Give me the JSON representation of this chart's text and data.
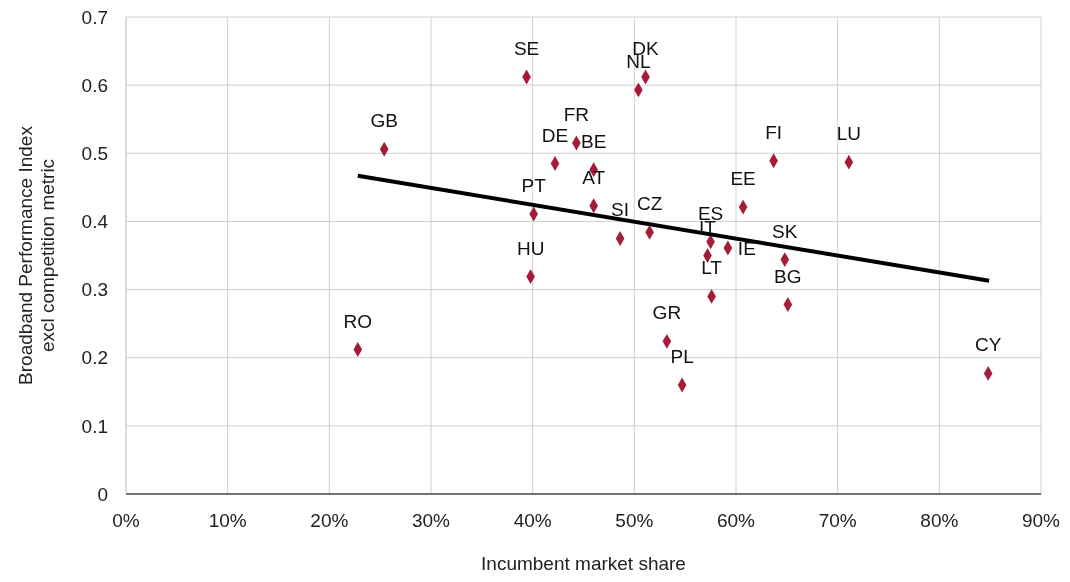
{
  "chart_data": {
    "type": "scatter",
    "xlabel": "Incumbent market share",
    "ylabel": "Broadband Performance Index excl competition metric",
    "xlim": [
      0,
      90
    ],
    "xticks": [
      {
        "value": 0,
        "label": "0%"
      },
      {
        "value": 10,
        "label": "10%"
      },
      {
        "value": 20,
        "label": "20%"
      },
      {
        "value": 30,
        "label": "30%"
      },
      {
        "value": 40,
        "label": "40%"
      },
      {
        "value": 50,
        "label": "50%"
      },
      {
        "value": 60,
        "label": "60%"
      },
      {
        "value": 70,
        "label": "70%"
      },
      {
        "value": 80,
        "label": "80%"
      },
      {
        "value": 90,
        "label": "90%"
      }
    ],
    "ylim": [
      0,
      0.7
    ],
    "yticks": [
      0,
      0.1,
      0.2,
      0.3,
      0.4,
      0.5,
      0.6,
      0.7
    ],
    "grid": true,
    "marker": "diamond",
    "series": [
      {
        "color": "#a51c36",
        "x": [
          39.4,
          51.1,
          50.4,
          25.4,
          44.3,
          42.2,
          46.0,
          46.0,
          40.1,
          48.6,
          51.5,
          39.8,
          57.5,
          57.2,
          59.2,
          57.6,
          60.7,
          53.2,
          54.7,
          64.8,
          65.1,
          63.7,
          71.1,
          84.8,
          22.8
        ],
        "values": [
          0.612,
          0.612,
          0.593,
          0.506,
          0.515,
          0.485,
          0.476,
          0.423,
          0.411,
          0.375,
          0.384,
          0.319,
          0.37,
          0.35,
          0.361,
          0.29,
          0.421,
          0.224,
          0.16,
          0.344,
          0.278,
          0.489,
          0.487,
          0.177,
          0.212
        ]
      },
      {
        "type": "line",
        "color": "#000000",
        "marker": "none",
        "x": [
          22.8,
          84.9
        ],
        "values": [
          0.467,
          0.313
        ]
      }
    ],
    "annotations": [
      {
        "text": "SE",
        "x": 39.4,
        "y": 0.612
      },
      {
        "text": "DK",
        "x": 51.1,
        "y": 0.612
      },
      {
        "text": "NL",
        "x": 50.4,
        "y": 0.593
      },
      {
        "text": "GB",
        "x": 25.4,
        "y": 0.506
      },
      {
        "text": "FR",
        "x": 44.3,
        "y": 0.515
      },
      {
        "text": "DE",
        "x": 42.2,
        "y": 0.485
      },
      {
        "text": "BE",
        "x": 46.0,
        "y": 0.476
      },
      {
        "text": "AT",
        "x": 46.0,
        "y": 0.423
      },
      {
        "text": "PT",
        "x": 40.1,
        "y": 0.411
      },
      {
        "text": "SI",
        "x": 48.6,
        "y": 0.375
      },
      {
        "text": "CZ",
        "x": 51.5,
        "y": 0.384
      },
      {
        "text": "HU",
        "x": 39.8,
        "y": 0.319
      },
      {
        "text": "ES",
        "x": 57.5,
        "y": 0.37
      },
      {
        "text": "IT",
        "x": 57.2,
        "y": 0.35
      },
      {
        "text": "IE",
        "x": 59.2,
        "y": 0.361
      },
      {
        "text": "LT",
        "x": 57.6,
        "y": 0.29
      },
      {
        "text": "EE",
        "x": 60.7,
        "y": 0.421
      },
      {
        "text": "GR",
        "x": 53.2,
        "y": 0.224
      },
      {
        "text": "PL",
        "x": 54.7,
        "y": 0.16
      },
      {
        "text": "SK",
        "x": 64.8,
        "y": 0.344
      },
      {
        "text": "BG",
        "x": 65.1,
        "y": 0.278
      },
      {
        "text": "FI",
        "x": 63.7,
        "y": 0.489
      },
      {
        "text": "LU",
        "x": 71.1,
        "y": 0.487
      },
      {
        "text": "CY",
        "x": 84.8,
        "y": 0.177
      },
      {
        "text": "RO",
        "x": 22.8,
        "y": 0.212
      }
    ]
  }
}
